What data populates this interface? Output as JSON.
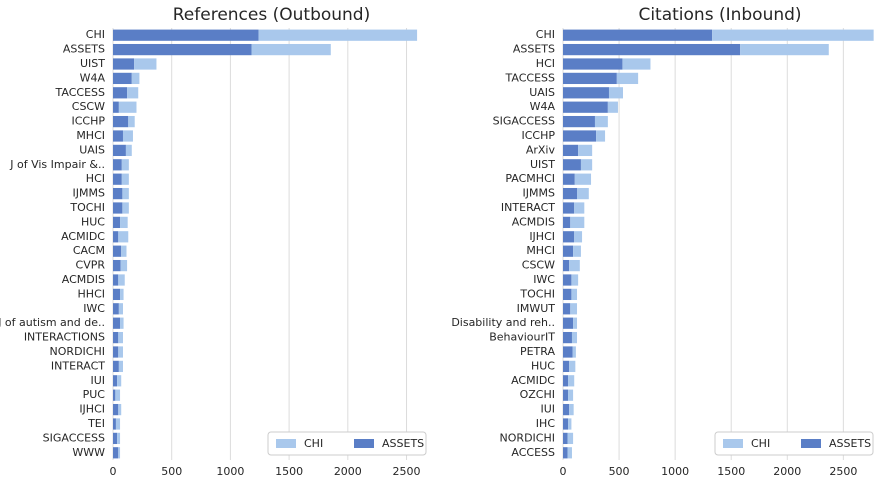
{
  "chart_data": [
    {
      "type": "barh_stacked",
      "title": "References (Outbound)",
      "categories": [
        "CHI",
        "ASSETS",
        "UIST",
        "W4A",
        "TACCESS",
        "CSCW",
        "ICCHP",
        "MHCI",
        "UAIS",
        "J of Vis Impair &..",
        "HCI",
        "IJMMS",
        "TOCHI",
        "HUC",
        "ACMIDC",
        "CACM",
        "CVPR",
        "ACMDIS",
        "HHCI",
        "IWC",
        "J of autism and de..",
        "INTERACTIONS",
        "NORDICHI",
        "INTERACT",
        "IUI",
        "PUC",
        "IJHCI",
        "TEI",
        "SIGACCESS",
        "WWW"
      ],
      "series": [
        {
          "name": "CHI",
          "color": "#a9c8ec",
          "values": [
            1350,
            675,
            190,
            65,
            95,
            150,
            55,
            85,
            50,
            60,
            60,
            55,
            55,
            65,
            85,
            45,
            55,
            55,
            30,
            35,
            30,
            40,
            40,
            35,
            35,
            40,
            25,
            35,
            25,
            15
          ]
        },
        {
          "name": "ASSETS",
          "color": "#5a7ec6",
          "values": [
            1240,
            1180,
            180,
            160,
            120,
            50,
            130,
            85,
            110,
            75,
            75,
            80,
            80,
            60,
            45,
            70,
            65,
            45,
            60,
            50,
            60,
            45,
            45,
            50,
            35,
            20,
            45,
            25,
            35,
            45
          ]
        }
      ],
      "xlim": [
        0,
        2700
      ],
      "xticks": [
        0,
        500,
        1000,
        1500,
        2000,
        2500
      ],
      "grid": true,
      "legend": "lower right"
    },
    {
      "type": "barh_stacked",
      "title": "Citations (Inbound)",
      "categories": [
        "CHI",
        "ASSETS",
        "HCI",
        "TACCESS",
        "UAIS",
        "W4A",
        "SIGACCESS",
        "ICCHP",
        "ArXiv",
        "UIST",
        "PACMHCI",
        "IJMMS",
        "INTERACT",
        "ACMDIS",
        "IJHCI",
        "MHCI",
        "CSCW",
        "IWC",
        "TOCHI",
        "IMWUT",
        "Disability and reh..",
        "BehaviourIT",
        "PETRA",
        "HUC",
        "ACMIDC",
        "OZCHI",
        "IUI",
        "IHC",
        "NORDICHI",
        "ACCESS"
      ],
      "series": [
        {
          "name": "CHI",
          "color": "#a9c8ec",
          "values": [
            1440,
            790,
            250,
            190,
            125,
            90,
            115,
            80,
            125,
            100,
            145,
            105,
            90,
            125,
            70,
            70,
            95,
            60,
            50,
            60,
            35,
            45,
            30,
            55,
            55,
            45,
            40,
            30,
            50,
            40
          ]
        },
        {
          "name": "ASSETS",
          "color": "#5a7ec6",
          "values": [
            1330,
            1580,
            530,
            480,
            410,
            400,
            285,
            295,
            135,
            160,
            105,
            125,
            100,
            65,
            100,
            90,
            55,
            75,
            75,
            65,
            90,
            80,
            85,
            55,
            45,
            45,
            55,
            45,
            40,
            40
          ]
        }
      ],
      "xlim": [
        0,
        2800
      ],
      "xticks": [
        0,
        500,
        1000,
        1500,
        2000,
        2500
      ],
      "grid": true,
      "legend": "lower right"
    }
  ]
}
